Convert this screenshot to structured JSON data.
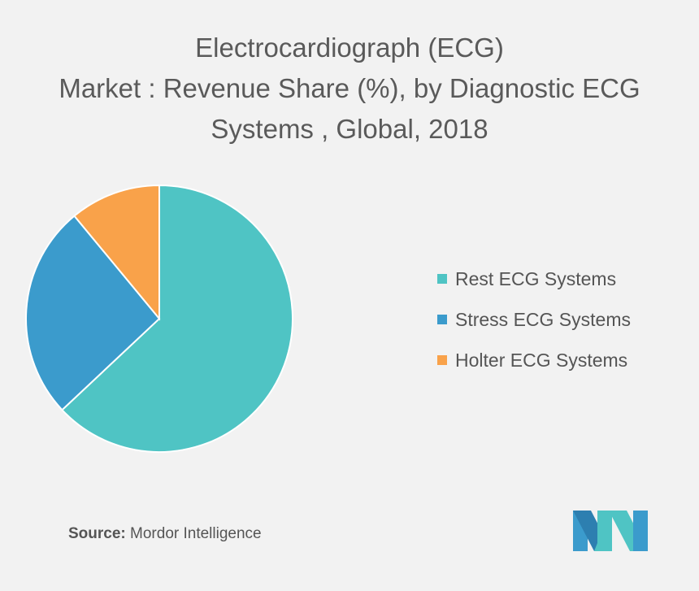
{
  "title_lines": [
    "Electrocardiograph (ECG)",
    "Market : Revenue Share (%), by Diagnostic ECG",
    "Systems , Global, 2018"
  ],
  "source": {
    "label": "Source:",
    "text": " Mordor Intelligence"
  },
  "chart_data": {
    "type": "pie",
    "title": "Electrocardiograph (ECG) Market : Revenue Share (%), by Diagnostic ECG Systems , Global, 2018",
    "legend_position": "right",
    "slices": [
      {
        "label": "Rest ECG Systems",
        "value": 63,
        "color": "#4fc4c4"
      },
      {
        "label": "Stress ECG Systems",
        "value": 26,
        "color": "#3b9bcc"
      },
      {
        "label": "Holter ECG Systems",
        "value": 11,
        "color": "#f9a24a"
      }
    ]
  },
  "logo_icon": "mordor-intelligence-logo"
}
